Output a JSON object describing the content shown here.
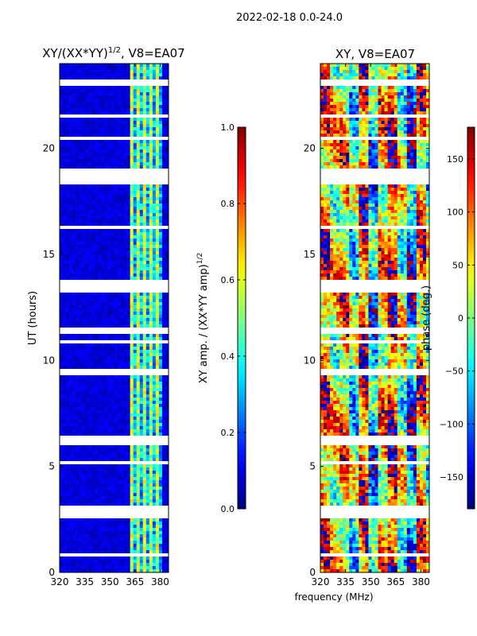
{
  "figure": {
    "suptitle": "2022-02-18 0.0-24.0",
    "common_xlabel": "frequency (MHz)"
  },
  "chart_data": [
    {
      "type": "heatmap",
      "title_main": "XY/(XX*YY)",
      "title_sup": "1/2",
      "title_tail": ", V8=EA07",
      "xlabel": "",
      "ylabel": "UT (hours)",
      "xlim": [
        320,
        385
      ],
      "ylim": [
        0,
        24
      ],
      "xticks": [
        320,
        335,
        350,
        365,
        380
      ],
      "yticks": [
        0,
        5,
        10,
        15,
        20
      ],
      "quantity": "normalized cross-correlation amplitude",
      "colorbar": {
        "label_main": "XY amp. / (XX*YY amp)",
        "label_sup": "1/2",
        "range": [
          0.0,
          1.0
        ],
        "ticks": [
          "0.0",
          "0.2",
          "0.4",
          "0.6",
          "0.8",
          "1.0"
        ],
        "tick_values": [
          0.0,
          0.2,
          0.4,
          0.6,
          0.8,
          1.0
        ],
        "colormap": "jet"
      },
      "low_band_level": 0.05,
      "high_band_range_mhz": [
        363,
        382
      ],
      "high_band_level": 0.35
    },
    {
      "type": "heatmap",
      "title": "XY, V8=EA07",
      "xlabel": "frequency (MHz)",
      "ylabel": "",
      "xlim": [
        320,
        385
      ],
      "ylim": [
        0,
        24
      ],
      "xticks": [
        320,
        335,
        350,
        365,
        380
      ],
      "yticks": [
        0,
        5,
        10,
        15,
        20
      ],
      "quantity": "cross-correlation phase",
      "colorbar": {
        "label": "phase (deg.)",
        "range": [
          -180,
          180
        ],
        "ticks": [
          "−150",
          "−100",
          "−50",
          "0",
          "50",
          "100",
          "150"
        ],
        "tick_values": [
          -150,
          -100,
          -50,
          0,
          50,
          100,
          150
        ],
        "colormap": "jet"
      }
    }
  ],
  "flagged_hours": [
    [
      18.35,
      19.05
    ],
    [
      13.25,
      13.75
    ],
    [
      11.25,
      11.5
    ],
    [
      9.25,
      9.6
    ],
    [
      6.05,
      6.4
    ],
    [
      2.55,
      3.15
    ],
    [
      23.0,
      23.2
    ],
    [
      21.5,
      21.65
    ],
    [
      10.8,
      10.92
    ],
    [
      14.05,
      14.15
    ],
    [
      16.2,
      16.3
    ],
    [
      0.75,
      0.88
    ],
    [
      0.4,
      0.5
    ],
    [
      5.1,
      5.2
    ],
    [
      7.9,
      8.0
    ],
    [
      12.4,
      12.48
    ],
    [
      20.4,
      20.48
    ],
    [
      22.3,
      22.38
    ]
  ],
  "colors": {
    "axes": "#000000",
    "background": "#ffffff"
  }
}
